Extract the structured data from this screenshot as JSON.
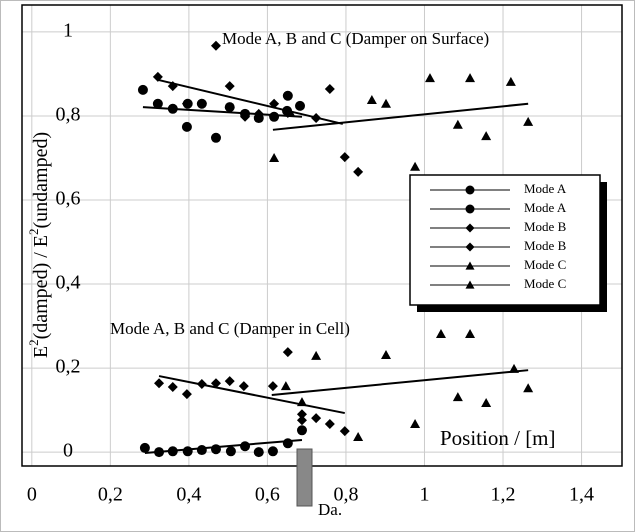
{
  "chart_data": {
    "type": "scatter",
    "xlim": [
      -0.025,
      1.503
    ],
    "ylim": [
      -0.033,
      1.064
    ],
    "xticks": [
      0,
      {
        "value": 0.2,
        "label": "0,2"
      },
      {
        "value": 0.4,
        "label": "0,4"
      },
      {
        "value": 0.6,
        "label": "0,6"
      },
      {
        "value": 0.8,
        "label": "0,8"
      },
      1,
      {
        "value": 1.2,
        "label": "1,2"
      },
      {
        "value": 1.4,
        "label": "1,4"
      }
    ],
    "yticks": [
      0,
      {
        "value": 0.2,
        "label": "0,2"
      },
      {
        "value": 0.4,
        "label": "0,4"
      },
      {
        "value": 0.6,
        "label": "0,6"
      },
      {
        "value": 0.8,
        "label": "0,8"
      },
      1
    ],
    "grid": true,
    "xlabel": "Position / [m]",
    "ylabel_parts": [
      "E",
      "2",
      "(damped) / E",
      "2",
      "(undamped)"
    ],
    "annotations": [
      "Mode A, B and C (Damper on Surface)",
      "Mode A, B and C (Damper in Cell)",
      "Da."
    ],
    "legend": "right",
    "series": [
      {
        "name": "Mode A",
        "marker": "circle",
        "color": "#000000",
        "x": [
          0.283,
          0.321,
          0.359,
          0.397,
          0.433,
          0.395,
          0.469,
          0.504,
          0.543,
          0.578,
          0.617,
          0.652,
          0.683,
          0.65
        ],
        "values": [
          0.862,
          0.829,
          0.817,
          0.829,
          0.829,
          0.774,
          0.748,
          0.821,
          0.805,
          0.795,
          0.798,
          0.848,
          0.824,
          0.812
        ],
        "fit_x": [
          0.283,
          0.688
        ],
        "fit_values": [
          0.821,
          0.798
        ]
      },
      {
        "name": "Mode A",
        "marker": "circle",
        "color": "#000000",
        "x": [
          0.288,
          0.324,
          0.359,
          0.397,
          0.433,
          0.469,
          0.507,
          0.543,
          0.578,
          0.614,
          0.652,
          0.688
        ],
        "values": [
          0.01,
          0,
          0.002,
          0.002,
          0.005,
          0.007,
          0.002,
          0.014,
          0,
          0.002,
          0.021,
          0.052
        ],
        "fit_x": [
          0.288,
          0.688
        ],
        "fit_values": [
          -0.002,
          0.029
        ]
      },
      {
        "name": "Mode B",
        "marker": "diamond",
        "color": "#000000",
        "x": [
          0.321,
          0.359,
          0.395,
          0.433,
          0.469,
          0.504,
          0.543,
          0.578,
          0.617,
          0.652,
          0.724,
          0.759,
          0.797,
          0.831
        ],
        "values": [
          0.893,
          0.871,
          0.829,
          0.829,
          0.967,
          0.871,
          0.798,
          0.805,
          0.829,
          0.807,
          0.795,
          0.864,
          0.702,
          0.667
        ],
        "fit_x": [
          0.321,
          0.792
        ],
        "fit_values": [
          0.886,
          0.781
        ]
      },
      {
        "name": "Mode B",
        "marker": "diamond",
        "color": "#000000",
        "x": [
          0.324,
          0.359,
          0.395,
          0.433,
          0.469,
          0.504,
          0.54,
          0.614,
          0.652,
          0.688,
          0.724,
          0.759,
          0.797,
          0.688
        ],
        "values": [
          0.164,
          0.155,
          0.138,
          0.162,
          0.164,
          0.169,
          0.157,
          0.157,
          0.238,
          0.09,
          0.081,
          0.067,
          0.05,
          0.076
        ],
        "fit_x": [
          0.324,
          0.797
        ],
        "fit_values": [
          0.181,
          0.093
        ]
      },
      {
        "name": "Mode C",
        "marker": "triangle",
        "color": "#000000",
        "x": [
          0.617,
          0.657,
          0.866,
          0.902,
          0.976,
          1.014,
          1.085,
          1.116,
          1.157,
          1.22,
          1.264
        ],
        "values": [
          0.7,
          0.81,
          0.838,
          0.829,
          0.679,
          0.89,
          0.779,
          0.89,
          0.752,
          0.881,
          0.786
        ],
        "fit_x": [
          0.614,
          1.264
        ],
        "fit_values": [
          0.767,
          0.829
        ]
      },
      {
        "name": "Mode C",
        "marker": "triangle",
        "color": "#000000",
        "x": [
          0.647,
          0.688,
          0.724,
          0.831,
          0.902,
          0.976,
          1.042,
          1.085,
          1.116,
          1.157,
          1.228,
          1.264
        ],
        "values": [
          0.157,
          0.119,
          0.229,
          0.036,
          0.231,
          0.067,
          0.281,
          0.131,
          0.281,
          0.117,
          0.198,
          0.152
        ],
        "fit_x": [
          0.611,
          1.264
        ],
        "fit_values": [
          0.136,
          0.195
        ]
      }
    ]
  }
}
